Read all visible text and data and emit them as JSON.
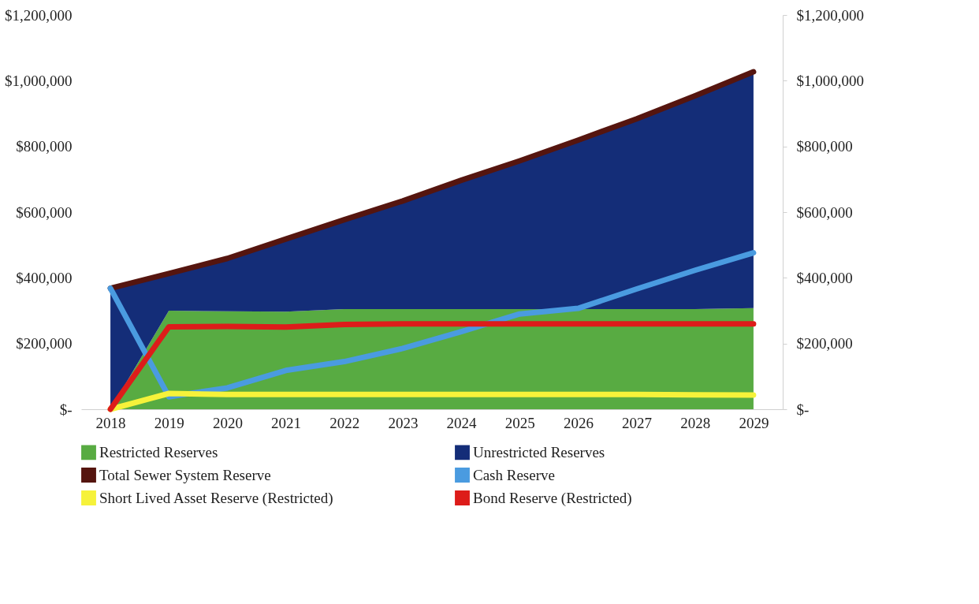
{
  "chart_data": {
    "type": "area",
    "stacked": true,
    "categories": [
      "2018",
      "2019",
      "2020",
      "2021",
      "2022",
      "2023",
      "2024",
      "2025",
      "2026",
      "2027",
      "2028",
      "2029"
    ],
    "series": [
      {
        "name": "Restricted Reserves",
        "type": "area",
        "color": "#58ab42",
        "values": [
          0,
          300000,
          298000,
          297000,
          305000,
          305000,
          305000,
          305000,
          305000,
          305000,
          305000,
          308000
        ]
      },
      {
        "name": "Unrestricted Reserves",
        "type": "area",
        "color": "#142d78",
        "values": [
          368000,
          113000,
          161000,
          221000,
          272000,
          329000,
          392000,
          451000,
          514000,
          579000,
          649000,
          719000
        ]
      },
      {
        "name": "Total Sewer System Reserve",
        "type": "line",
        "color": "#55150f",
        "values": [
          368000,
          413000,
          459000,
          518000,
          577000,
          634000,
          697000,
          756000,
          819000,
          884000,
          954000,
          1027000
        ]
      },
      {
        "name": "Cash Reserve",
        "type": "line",
        "color": "#4a9be0",
        "values": [
          368000,
          38000,
          65000,
          118000,
          145000,
          185000,
          236000,
          290000,
          307000,
          366000,
          423000,
          476000
        ]
      },
      {
        "name": "Short Lived Asset Reserve (Restricted)",
        "type": "line",
        "color": "#f6f23a",
        "values": [
          0,
          48000,
          45000,
          45000,
          45000,
          45000,
          45000,
          45000,
          45000,
          45000,
          44000,
          43000
        ]
      },
      {
        "name": "Bond Reserve (Restricted)",
        "type": "line",
        "color": "#dd1c1a",
        "values": [
          0,
          251000,
          252000,
          250000,
          258000,
          260000,
          260000,
          260000,
          260000,
          260000,
          260000,
          260000
        ]
      }
    ],
    "ylim": [
      0,
      1200000
    ],
    "yticks": [
      {
        "value": 0,
        "label": "$-"
      },
      {
        "value": 200000,
        "label": "$200,000"
      },
      {
        "value": 400000,
        "label": "$400,000"
      },
      {
        "value": 600000,
        "label": "$600,000"
      },
      {
        "value": 800000,
        "label": "$800,000"
      },
      {
        "value": 1000000,
        "label": "$1,000,000"
      },
      {
        "value": 1200000,
        "label": "$1,200,000"
      }
    ],
    "y2lim": [
      0,
      1200000
    ],
    "y2ticks": [
      {
        "value": 0,
        "label": "$-"
      },
      {
        "value": 200000,
        "label": "$200,000"
      },
      {
        "value": 400000,
        "label": "$400,000"
      },
      {
        "value": 600000,
        "label": "$600,000"
      },
      {
        "value": 800000,
        "label": "$800,000"
      },
      {
        "value": 1000000,
        "label": "$1,000,000"
      },
      {
        "value": 1200000,
        "label": "$1,200,000"
      }
    ],
    "grid": false,
    "legend": "bottom"
  }
}
